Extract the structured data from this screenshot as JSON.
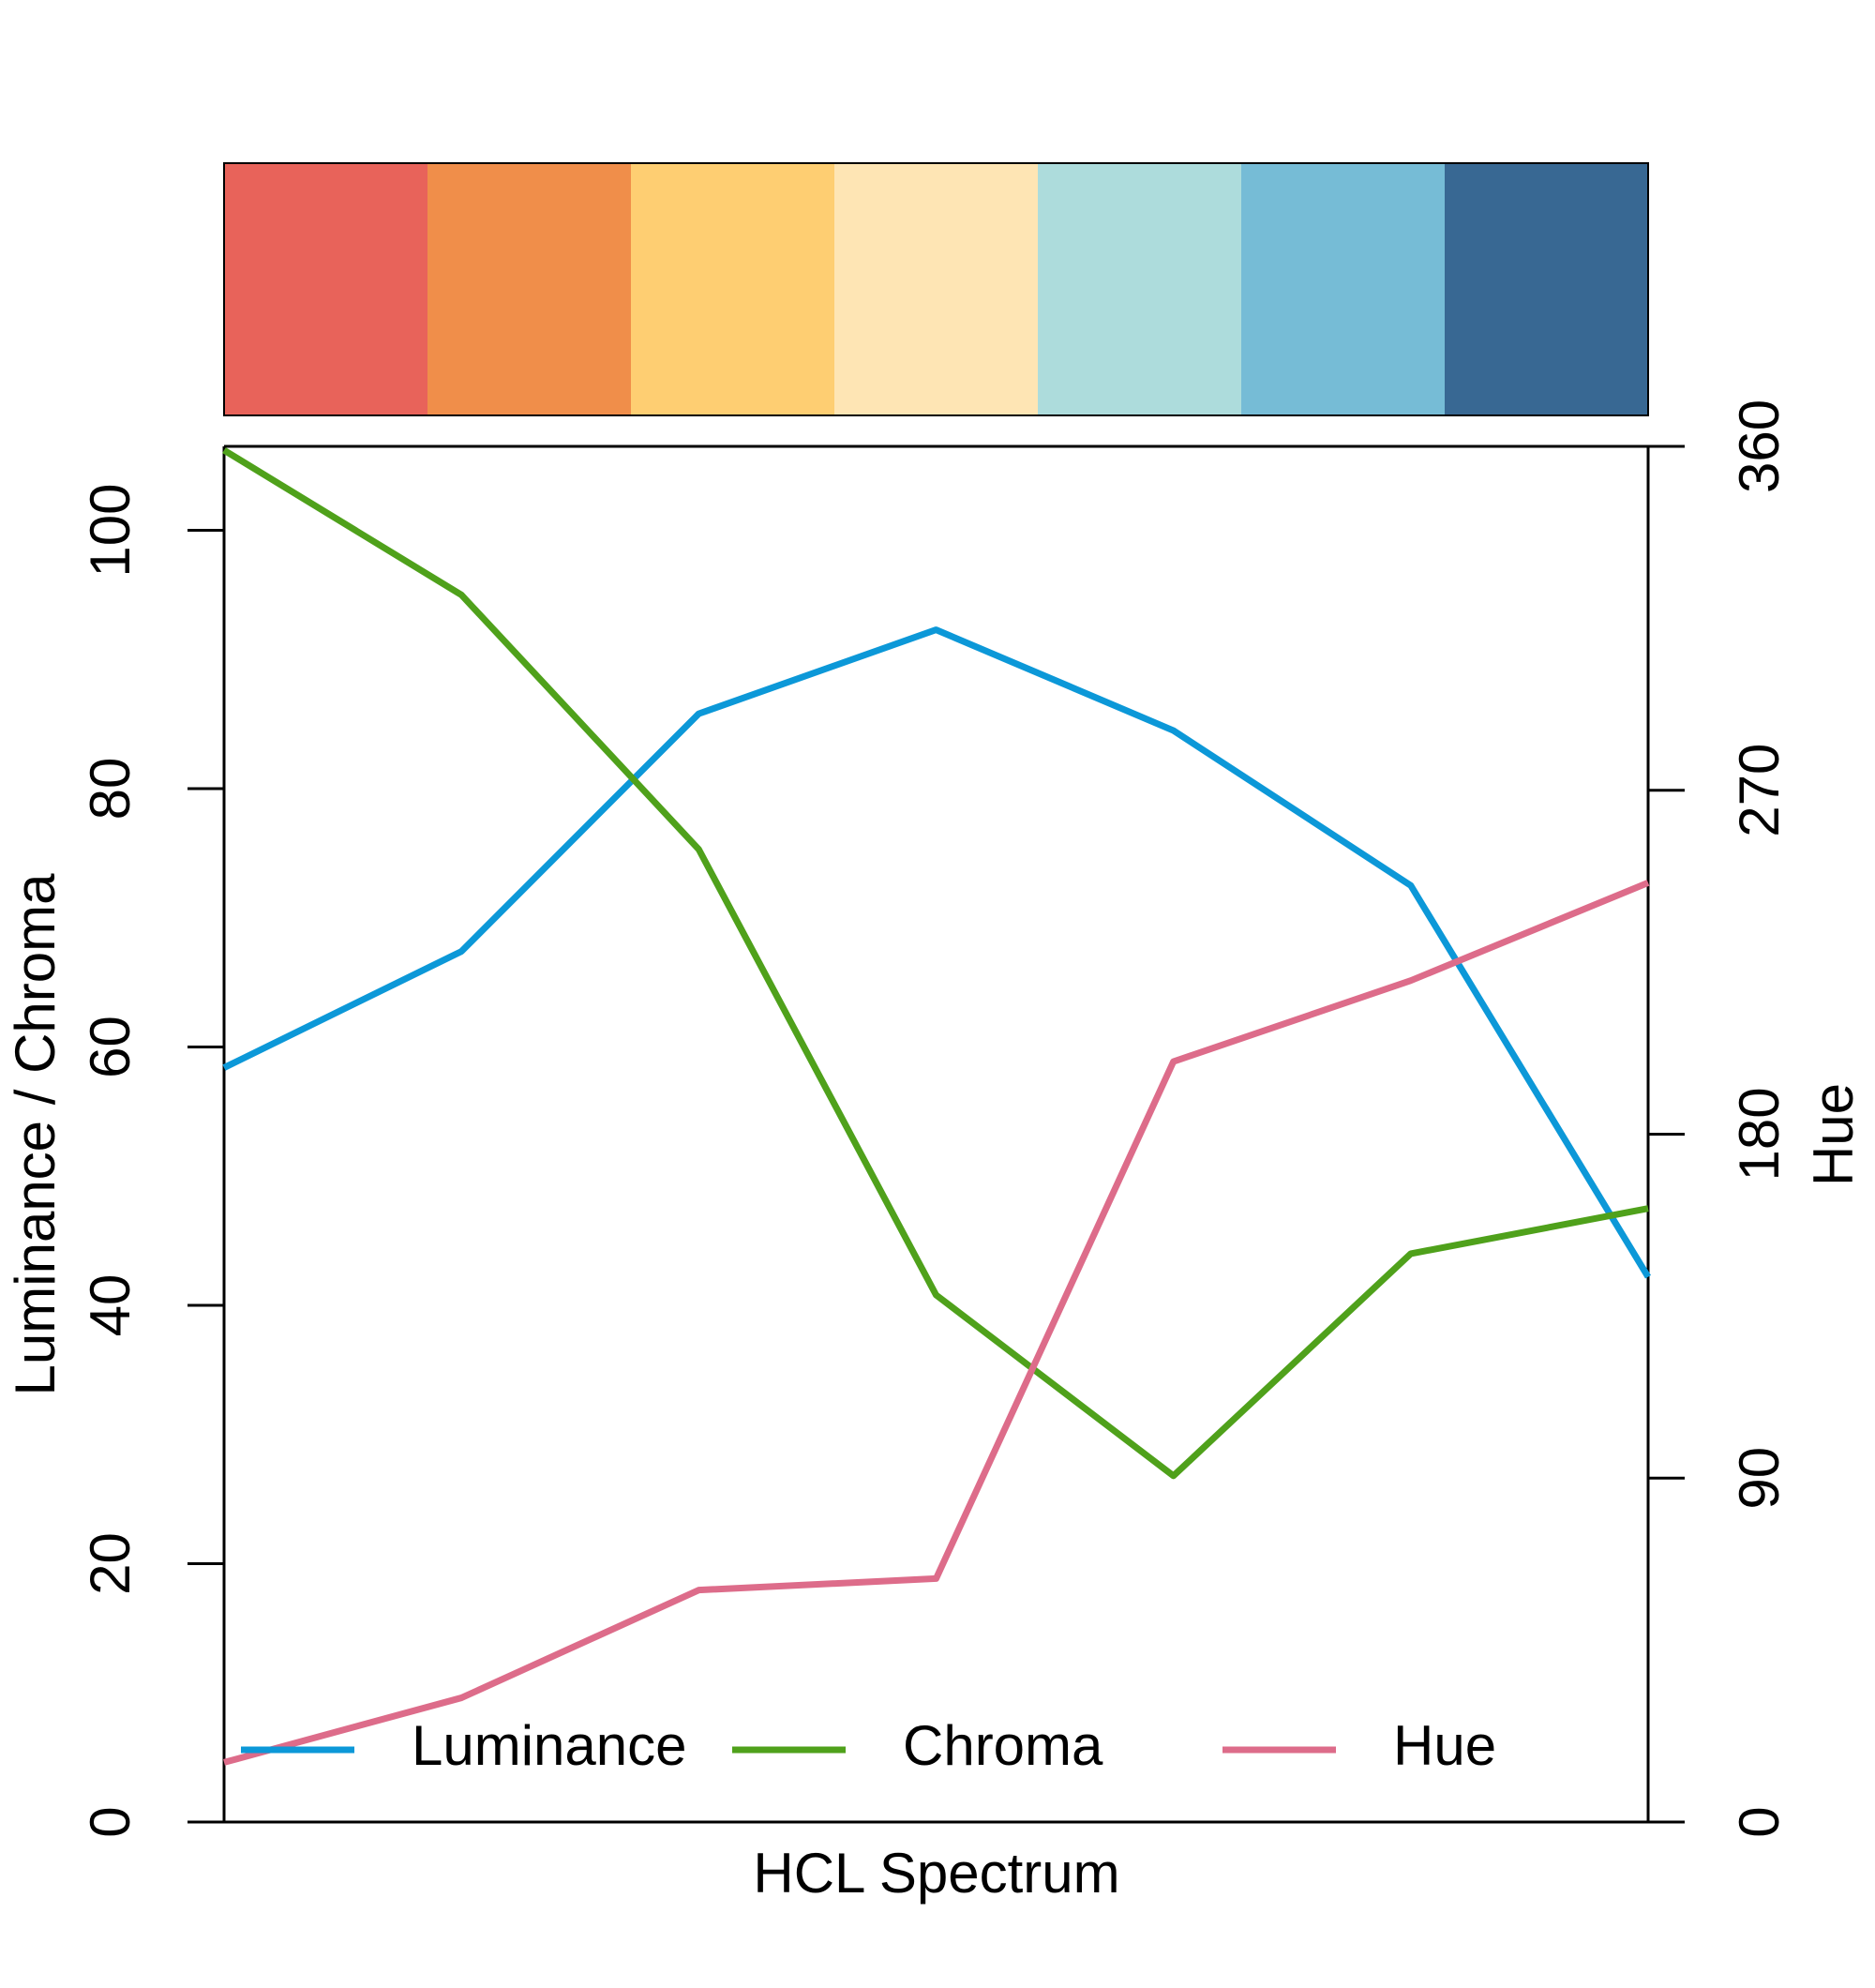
{
  "chart_data": {
    "type": "line",
    "x_label": "HCL Spectrum",
    "y_label": "Luminance / Chroma",
    "y2_label": "Hue",
    "palette": [
      "#E8635A",
      "#F08E4A",
      "#FECE72",
      "#FEE5B4",
      "#ADDCDC",
      "#76BCD6",
      "#386893"
    ],
    "categories": [
      null,
      null,
      null,
      null,
      null,
      null,
      null
    ],
    "series": [
      {
        "name": "Luminance",
        "color": "#0C98D8",
        "values": [
          58.4,
          67.4,
          85.8,
          92.3,
          84.5,
          72.5,
          42.2
        ]
      },
      {
        "name": "Chroma",
        "color": "#4FA11B",
        "values": [
          106.2,
          95.0,
          75.3,
          40.8,
          26.8,
          44.0,
          47.5
        ]
      },
      {
        "name": "Hue",
        "color": "#DD6C8A",
        "axis": "y2",
        "values": [
          15.6,
          32.5,
          60.7,
          63.7,
          199,
          220.2,
          245.8
        ]
      }
    ],
    "ylim": [
      0,
      106.5
    ],
    "yticks": [
      0,
      20,
      40,
      60,
      80,
      100
    ],
    "y2lim": [
      0,
      360
    ],
    "y2ticks": [
      0,
      90,
      180,
      270,
      360
    ],
    "legend": "bottom"
  }
}
